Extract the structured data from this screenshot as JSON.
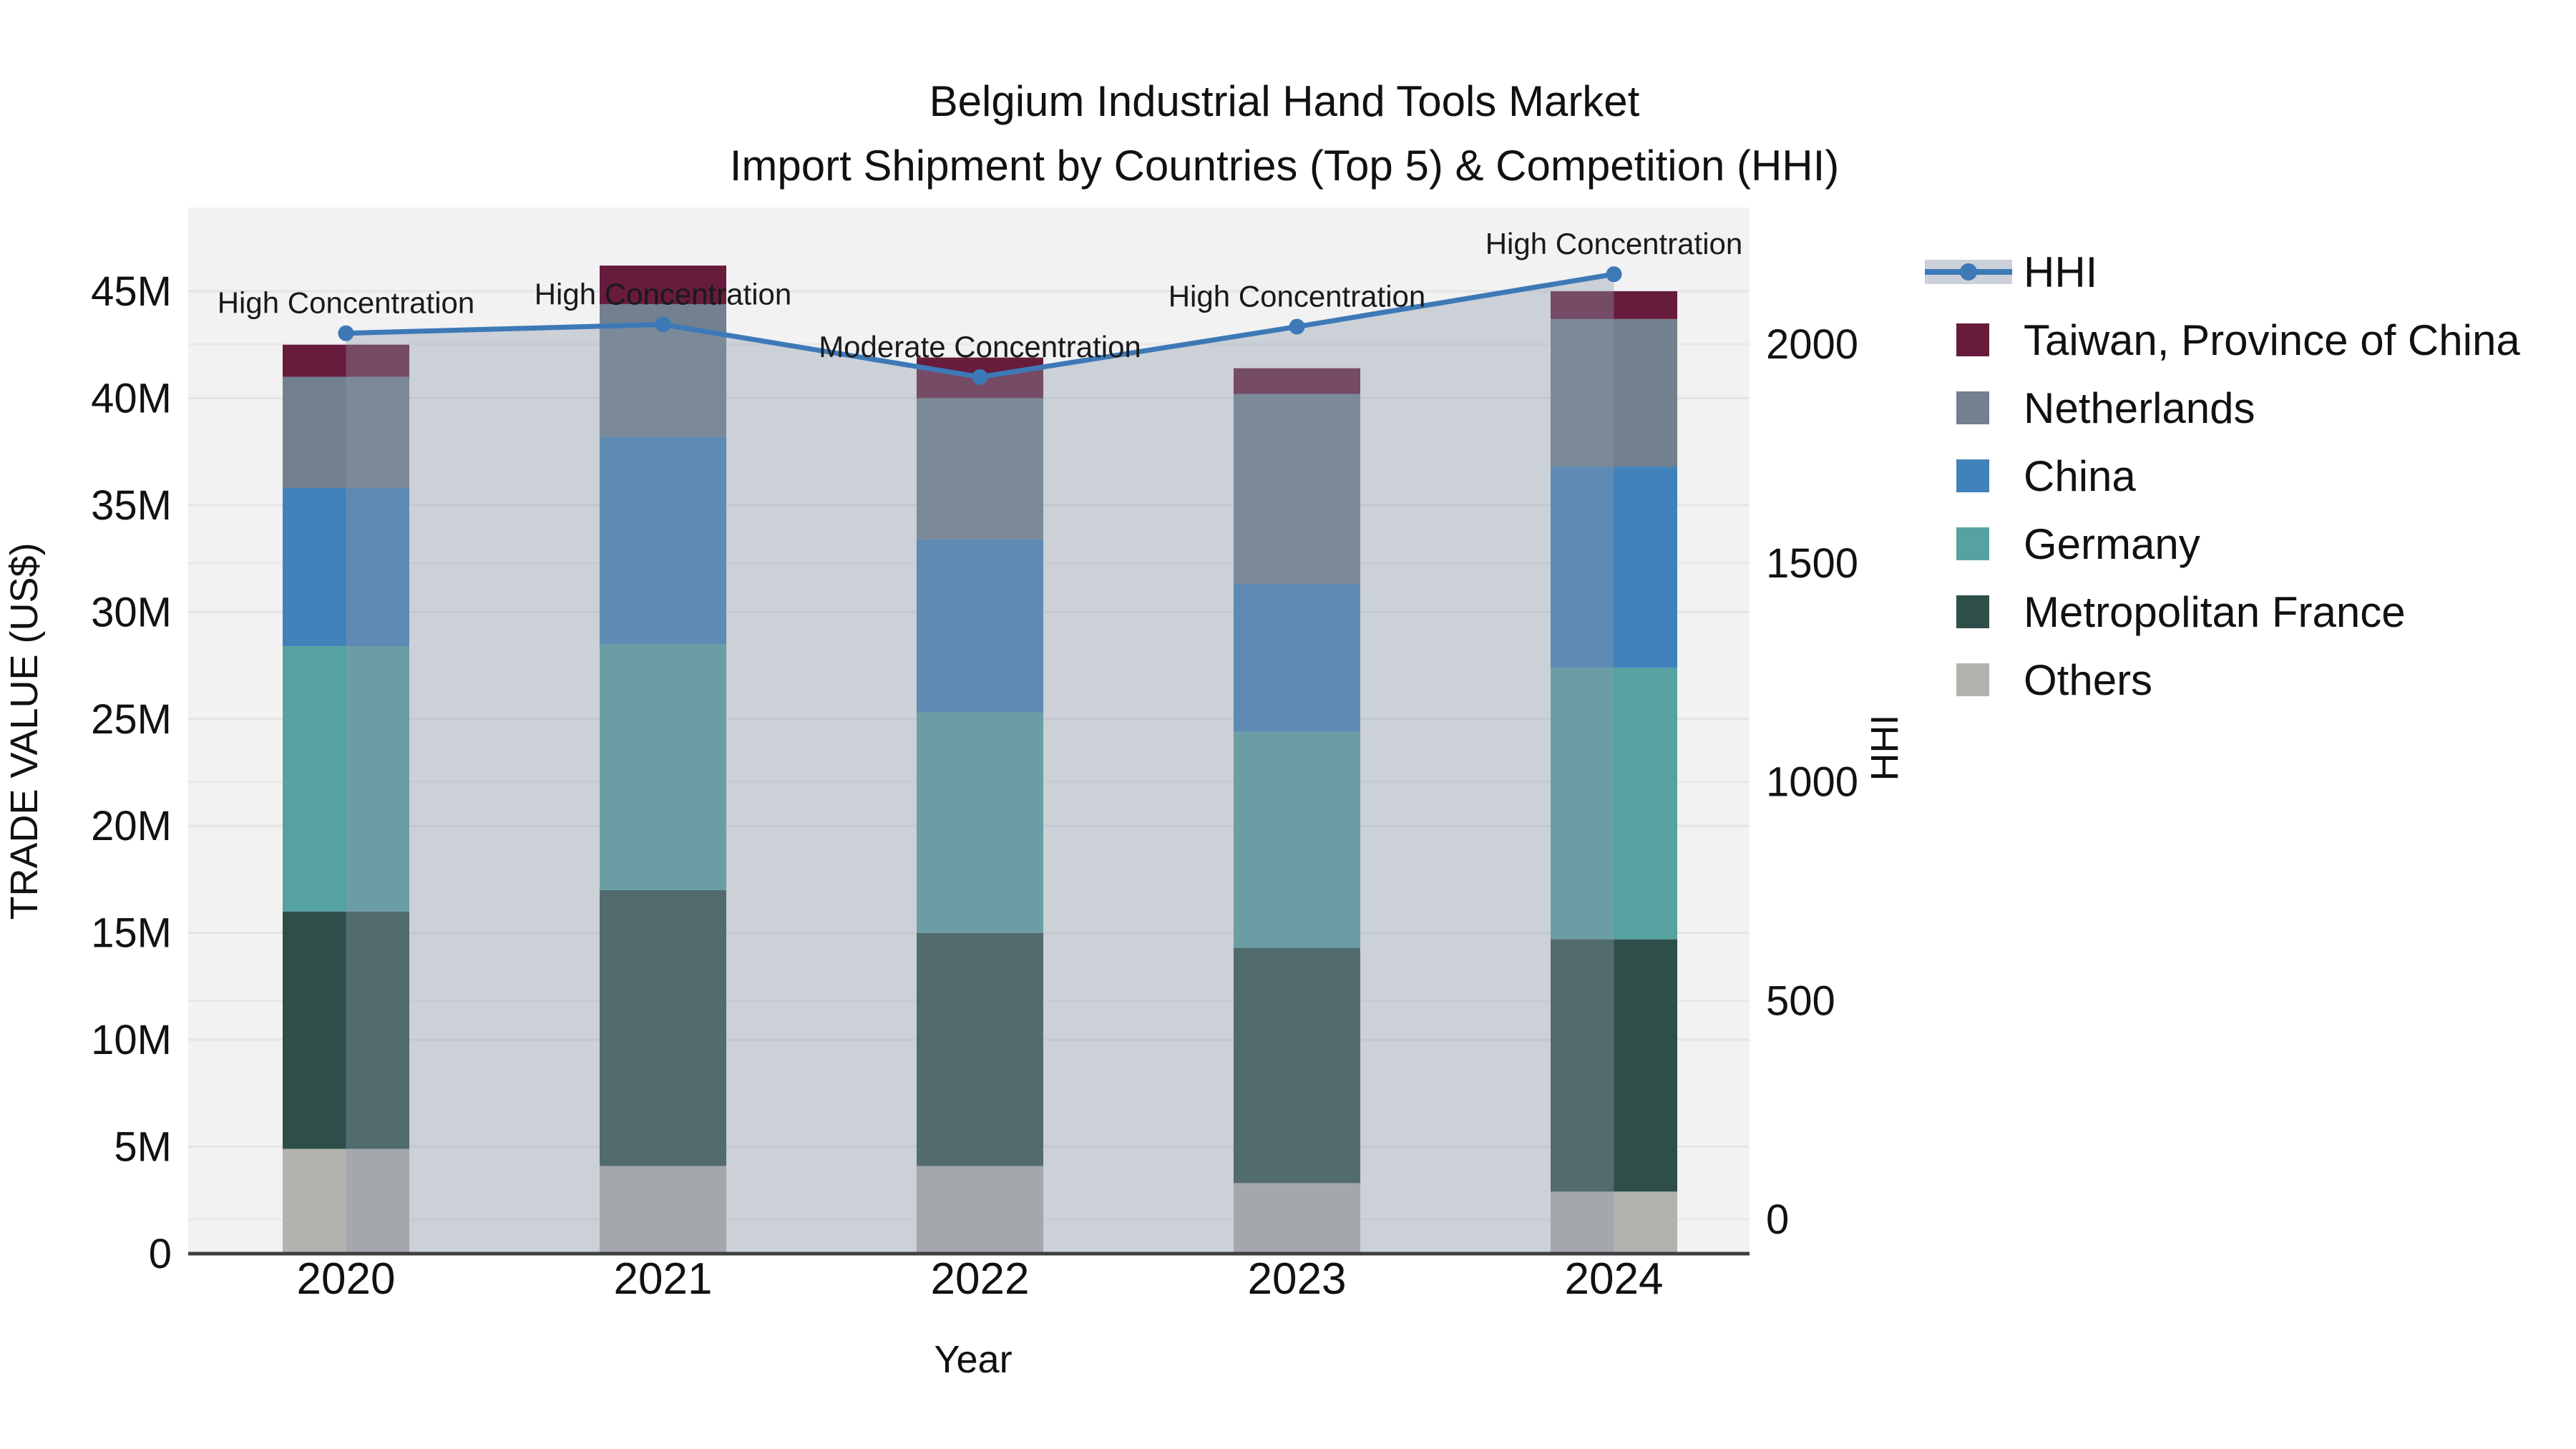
{
  "title": {
    "line1": "Belgium Industrial Hand Tools Market",
    "line2": "Import Shipment by Countries (Top 5) & Competition (HHI)"
  },
  "axes": {
    "y_label": "TRADE VALUE (US$)",
    "x_label": "Year",
    "y2_label": "HHI",
    "y_ticks": [
      "0",
      "5M",
      "10M",
      "15M",
      "20M",
      "25M",
      "30M",
      "35M",
      "40M",
      "45M"
    ],
    "y2_ticks": [
      "0",
      "500",
      "1000",
      "1500",
      "2000"
    ]
  },
  "chart_data": {
    "type": "bar",
    "subtype": "stacked-bar-with-line",
    "categories": [
      "2020",
      "2021",
      "2022",
      "2023",
      "2024"
    ],
    "value_unit": "million US$",
    "ylim": [
      0,
      45
    ],
    "y2lim_ticks": [
      0,
      2000
    ],
    "grid": true,
    "series": [
      {
        "name": "Others",
        "color": "#b2b2af",
        "values": [
          4.9,
          4.1,
          4.1,
          3.3,
          2.9
        ]
      },
      {
        "name": "Metropolitan France",
        "color": "#2e4f49",
        "values": [
          11.1,
          12.9,
          10.9,
          11.0,
          11.8
        ]
      },
      {
        "name": "Germany",
        "color": "#55a2a0",
        "values": [
          12.4,
          11.5,
          10.3,
          10.1,
          12.7
        ]
      },
      {
        "name": "China",
        "color": "#4282ba",
        "values": [
          7.4,
          9.7,
          8.1,
          6.9,
          9.4
        ]
      },
      {
        "name": "Netherlands",
        "color": "#72808f",
        "values": [
          5.2,
          6.2,
          6.6,
          8.9,
          6.9
        ]
      },
      {
        "name": "Taiwan, Province of China",
        "color": "#671c3c",
        "values": [
          1.5,
          1.8,
          1.9,
          1.2,
          1.3
        ]
      }
    ],
    "bar_totals": [
      42.5,
      46.2,
      41.9,
      41.4,
      45.0
    ],
    "line_series": {
      "name": "HHI",
      "color": "#3d79b7",
      "area_fill": "rgba(141,152,171,0.38)",
      "values": [
        2025,
        2045,
        1925,
        2040,
        2160
      ]
    },
    "annotations": [
      "High Concentration",
      "High Concentration",
      "Moderate Concentration",
      "High Concentration",
      "High Concentration"
    ],
    "legend_position": "right"
  },
  "legend": {
    "items": [
      {
        "label": "HHI",
        "type": "line",
        "color": "#3d79b7"
      },
      {
        "label": "Taiwan, Province of China",
        "type": "square",
        "color": "#671c3c"
      },
      {
        "label": "Netherlands",
        "type": "square",
        "color": "#72808f"
      },
      {
        "label": "China",
        "type": "square",
        "color": "#4282ba"
      },
      {
        "label": "Germany",
        "type": "square",
        "color": "#55a2a0"
      },
      {
        "label": "Metropolitan France",
        "type": "square",
        "color": "#2e4f49"
      },
      {
        "label": "Others",
        "type": "square",
        "color": "#b2b2af"
      }
    ]
  }
}
